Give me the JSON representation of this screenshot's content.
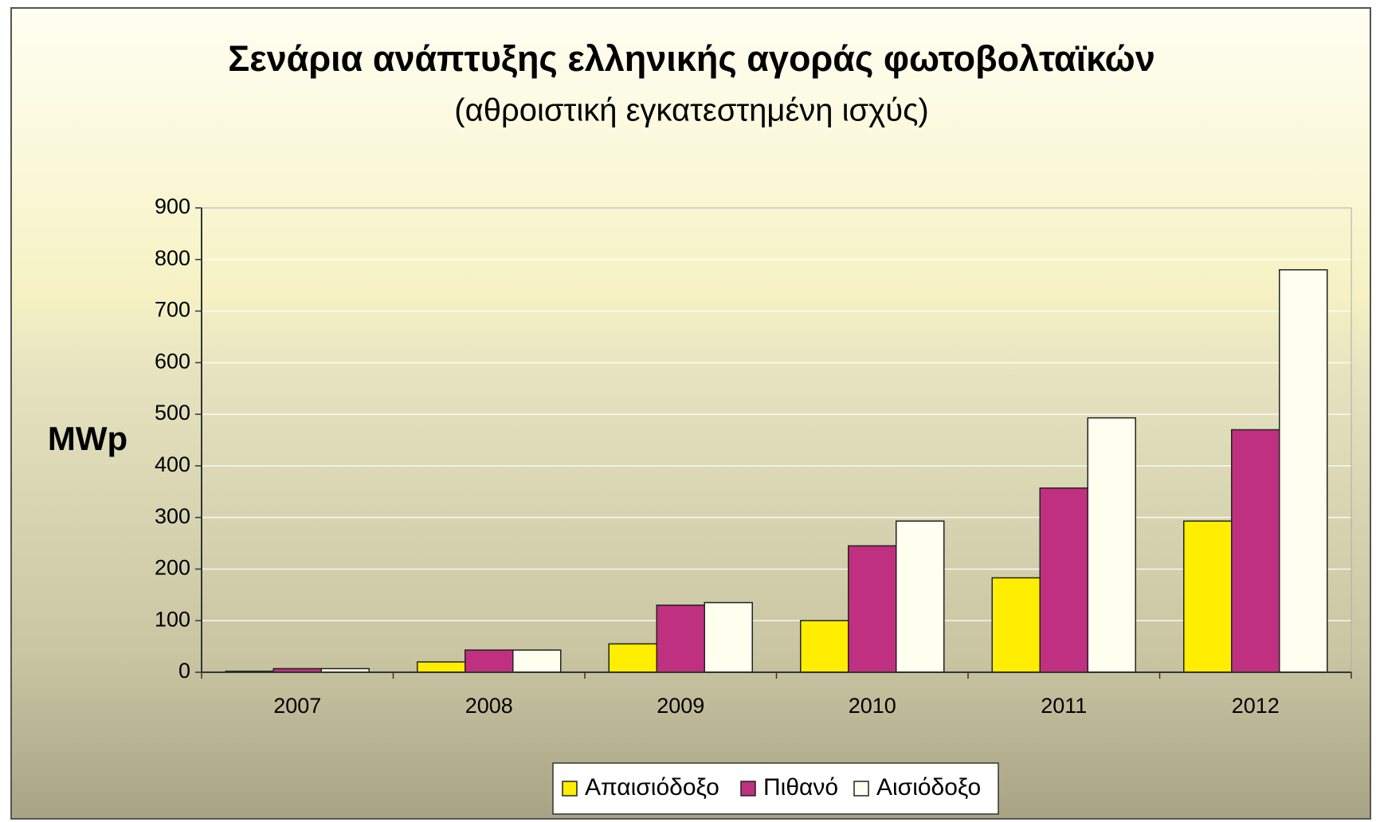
{
  "chart_data": {
    "type": "bar",
    "title": "Σενάρια ανάπτυξης ελληνικής αγοράς φωτοβολταϊκών",
    "subtitle": "(αθροιστική εγκατεστημένη ισχύς)",
    "y_label": "MWp",
    "categories": [
      "2007",
      "2008",
      "2009",
      "2010",
      "2011",
      "2012"
    ],
    "series": [
      {
        "name": "Απαισιόδοξο",
        "color": "#ffee00",
        "values": [
          2,
          20,
          55,
          100,
          183,
          293
        ]
      },
      {
        "name": "Πιθανό",
        "color": "#c03080",
        "values": [
          7,
          43,
          130,
          245,
          357,
          470
        ]
      },
      {
        "name": "Αισιόδοξο",
        "color": "#fffff0",
        "values": [
          7,
          43,
          135,
          293,
          493,
          780
        ]
      }
    ],
    "ylim": [
      0,
      900
    ],
    "yticks": [
      0,
      100,
      200,
      300,
      400,
      500,
      600,
      700,
      800,
      900
    ],
    "grid": true,
    "legend": "bottom"
  }
}
